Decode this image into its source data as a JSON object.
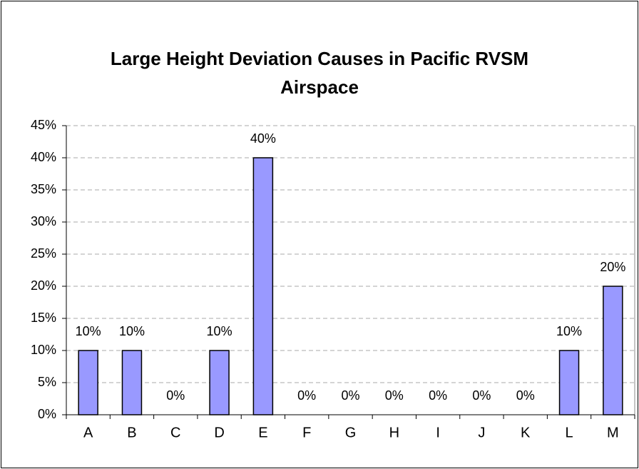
{
  "chart_data": {
    "type": "bar",
    "title": "Large Height Deviation Causes in Pacific RVSM Airspace",
    "categories": [
      "A",
      "B",
      "C",
      "D",
      "E",
      "F",
      "G",
      "H",
      "I",
      "J",
      "K",
      "L",
      "M"
    ],
    "values": [
      10,
      10,
      0,
      10,
      40,
      0,
      0,
      0,
      0,
      0,
      0,
      10,
      20
    ],
    "value_labels": [
      "10%",
      "10%",
      "0%",
      "10%",
      "40%",
      "0%",
      "0%",
      "0%",
      "0%",
      "0%",
      "0%",
      "10%",
      "20%"
    ],
    "color": "#9999ff",
    "ylim": [
      0,
      45
    ],
    "yticks": [
      {
        "value": 0,
        "label": "0%"
      },
      {
        "value": 5,
        "label": "5%"
      },
      {
        "value": 10,
        "label": "10%"
      },
      {
        "value": 15,
        "label": "15%"
      },
      {
        "value": 20,
        "label": "20%"
      },
      {
        "value": 25,
        "label": "25%"
      },
      {
        "value": 30,
        "label": "30%"
      },
      {
        "value": 35,
        "label": "35%"
      },
      {
        "value": 40,
        "label": "40%"
      },
      {
        "value": 45,
        "label": "45%"
      }
    ],
    "grid": true
  }
}
